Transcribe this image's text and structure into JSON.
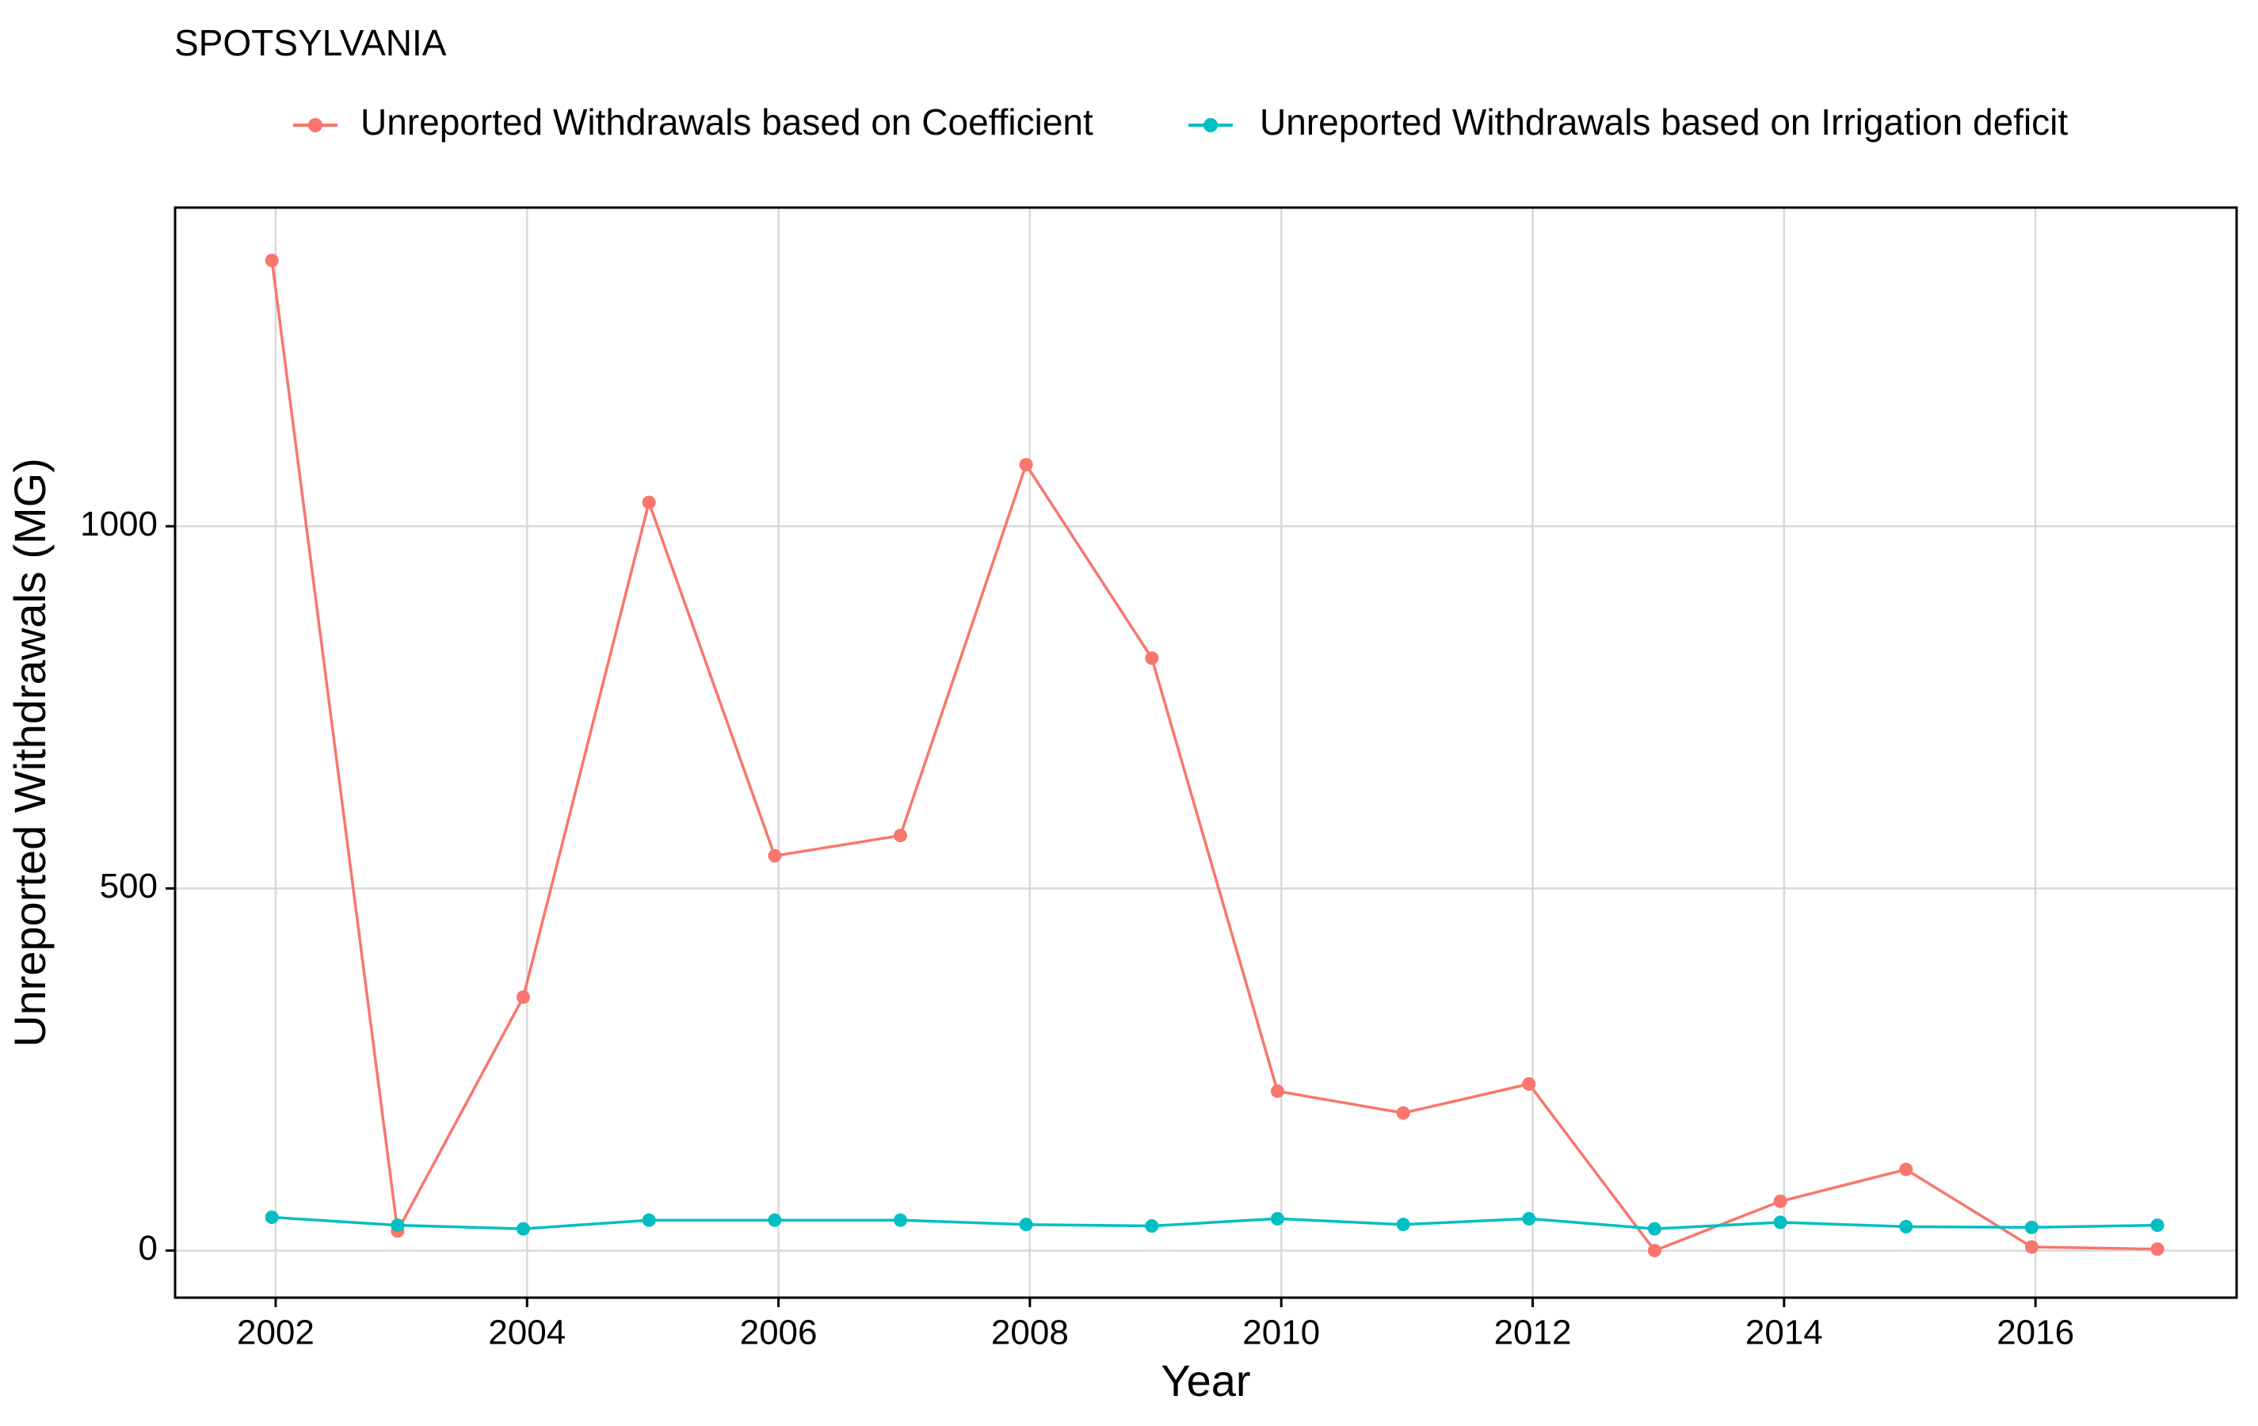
{
  "chart_data": {
    "type": "line",
    "title": "SPOTSYLVANIA",
    "xlabel": "Year",
    "ylabel": "Unreported Withdrawals (MG)",
    "x": [
      2001.97,
      2002.97,
      2003.97,
      2004.97,
      2005.97,
      2006.97,
      2007.97,
      2008.97,
      2009.97,
      2010.97,
      2011.97,
      2012.97,
      2013.97,
      2014.97,
      2015.97,
      2016.97
    ],
    "xlim": [
      2001.2,
      2017.6
    ],
    "ylim": [
      -65,
      1440
    ],
    "x_ticks": [
      2002,
      2004,
      2006,
      2008,
      2010,
      2012,
      2014,
      2016
    ],
    "x_tick_labels": [
      "2002",
      "2004",
      "2006",
      "2008",
      "2010",
      "2012",
      "2014",
      "2016"
    ],
    "y_ticks": [
      0,
      500,
      1000
    ],
    "y_tick_labels": [
      "0",
      "500",
      "1000"
    ],
    "grid": true,
    "legend_position": "top",
    "series": [
      {
        "name": "Unreported Withdrawals based on Coefficient",
        "color": "#F8766D",
        "values": [
          1367,
          27,
          350,
          1033,
          545,
          573,
          1085,
          818,
          220,
          190,
          230,
          0,
          68,
          112,
          5,
          2
        ]
      },
      {
        "name": "Unreported Withdrawals based on Irrigation deficit",
        "color": "#00BFC4",
        "values": [
          46,
          35,
          30,
          42,
          42,
          42,
          36,
          34,
          44,
          36,
          44,
          30,
          39,
          33,
          32,
          35
        ]
      }
    ]
  }
}
